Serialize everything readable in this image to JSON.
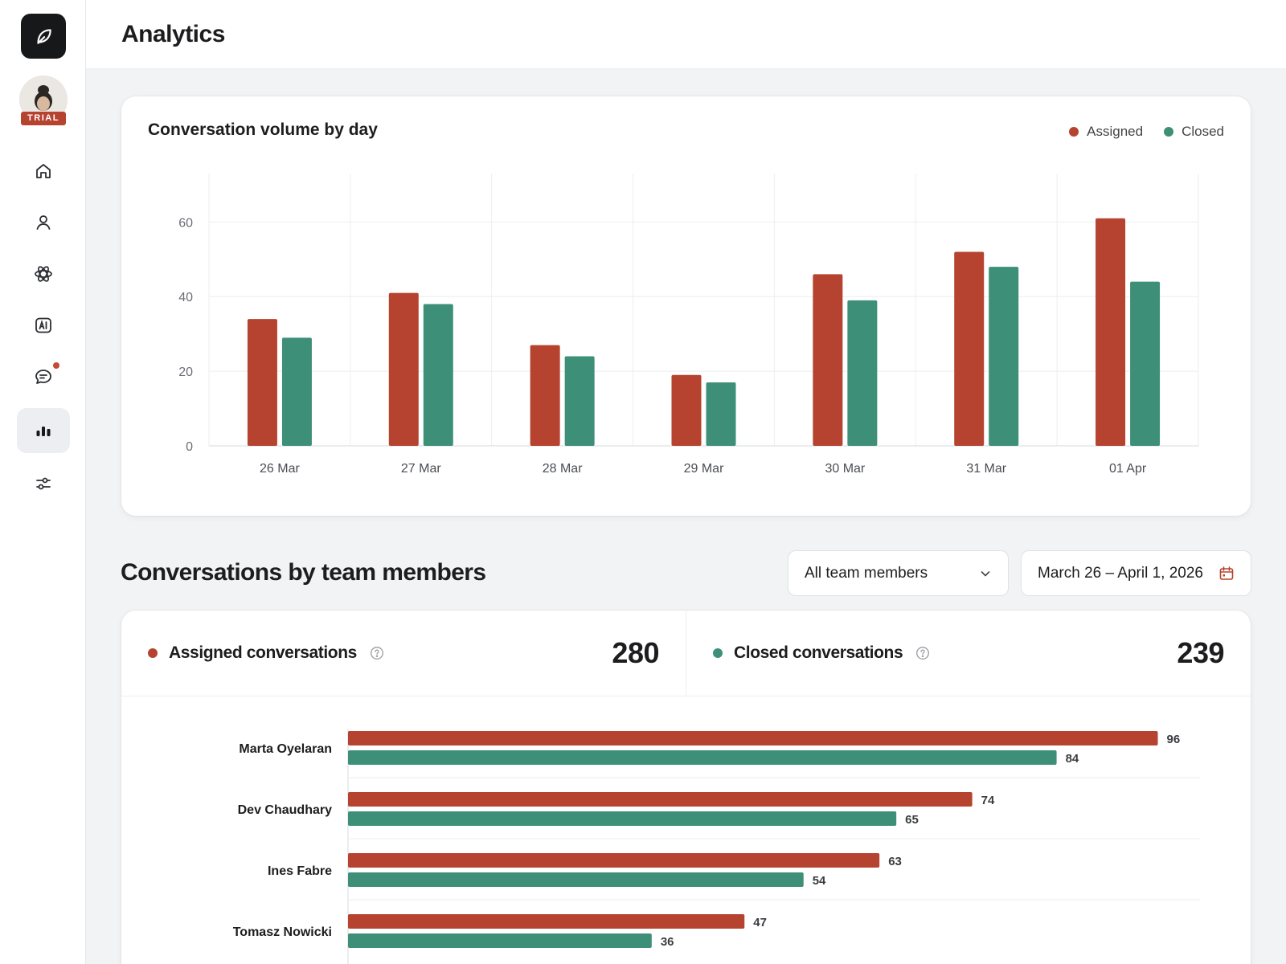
{
  "page": {
    "title": "Analytics"
  },
  "sidebar": {
    "trial_badge": "TRIAL",
    "items": [
      {
        "icon": "home-icon"
      },
      {
        "icon": "user-icon"
      },
      {
        "icon": "atom-icon"
      },
      {
        "icon": "ai-icon"
      },
      {
        "icon": "chat-icon",
        "notification": true
      },
      {
        "icon": "bar-chart-icon",
        "active": true
      },
      {
        "icon": "sliders-icon"
      }
    ]
  },
  "colors": {
    "assigned": "#b5432f",
    "closed": "#3e8f78"
  },
  "volume_card": {
    "title": "Conversation volume by day",
    "legend": {
      "assigned": "Assigned",
      "closed": "Closed"
    }
  },
  "team_section": {
    "title": "Conversations by team members",
    "members_filter": "All team members",
    "date_range": "March 26 – April 1, 2026",
    "assigned": {
      "label": "Assigned conversations",
      "value": "280"
    },
    "closed": {
      "label": "Closed conversations",
      "value": "239"
    }
  },
  "chart_data": [
    {
      "type": "bar",
      "title": "Conversation volume by day",
      "categories": [
        "26 Mar",
        "27 Mar",
        "28 Mar",
        "29 Mar",
        "30 Mar",
        "31 Mar",
        "01 Apr"
      ],
      "series": [
        {
          "name": "Assigned",
          "values": [
            34,
            41,
            27,
            19,
            46,
            52,
            61
          ]
        },
        {
          "name": "Closed",
          "values": [
            29,
            38,
            24,
            17,
            39,
            48,
            44
          ]
        }
      ],
      "yticks": [
        0,
        20,
        40,
        60
      ],
      "ylim": [
        0,
        73
      ],
      "grid": true,
      "legend": "top-right"
    },
    {
      "type": "bar",
      "orientation": "horizontal",
      "categories": [
        "Marta Oyelaran",
        "Dev Chaudhary",
        "Ines Fabre",
        "Tomasz Nowicki"
      ],
      "series": [
        {
          "name": "Assigned",
          "values": [
            96,
            74,
            63,
            47
          ]
        },
        {
          "name": "Closed",
          "values": [
            84,
            65,
            54,
            36
          ]
        }
      ],
      "xlim": [
        0,
        101
      ]
    }
  ]
}
